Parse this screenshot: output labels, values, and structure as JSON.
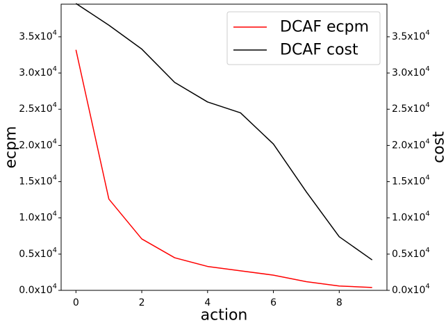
{
  "chart_data": {
    "type": "line",
    "xlabel": "action",
    "ylabel_left": "ecpm",
    "ylabel_right": "cost",
    "x": [
      0,
      1,
      2,
      3,
      4,
      5,
      6,
      7,
      8,
      9
    ],
    "xlim": [
      -0.45,
      9.45
    ],
    "xticks": [
      0,
      2,
      4,
      6,
      8
    ],
    "ylim_left": [
      0,
      39500
    ],
    "ylim_right": [
      0,
      39500
    ],
    "yticks": [
      0,
      5000,
      10000,
      15000,
      20000,
      25000,
      30000,
      35000
    ],
    "ytick_labels": [
      "0.0x10^4",
      "0.5x10^4",
      "1.0x10^4",
      "1.5x10^4",
      "2.0x10^4",
      "2.5x10^4",
      "3.0x10^4",
      "3.5x10^4"
    ],
    "legend_position": "top-right",
    "grid": false,
    "series": [
      {
        "name": "DCAF ecpm",
        "axis": "left",
        "color": "#ff0000",
        "values": [
          33200,
          12600,
          7100,
          4500,
          3300,
          2700,
          2100,
          1200,
          600,
          400
        ]
      },
      {
        "name": "DCAF cost",
        "axis": "right",
        "color": "#000000",
        "values": [
          39600,
          36600,
          33300,
          28700,
          26000,
          24500,
          20200,
          13600,
          7400,
          4200
        ]
      }
    ]
  }
}
